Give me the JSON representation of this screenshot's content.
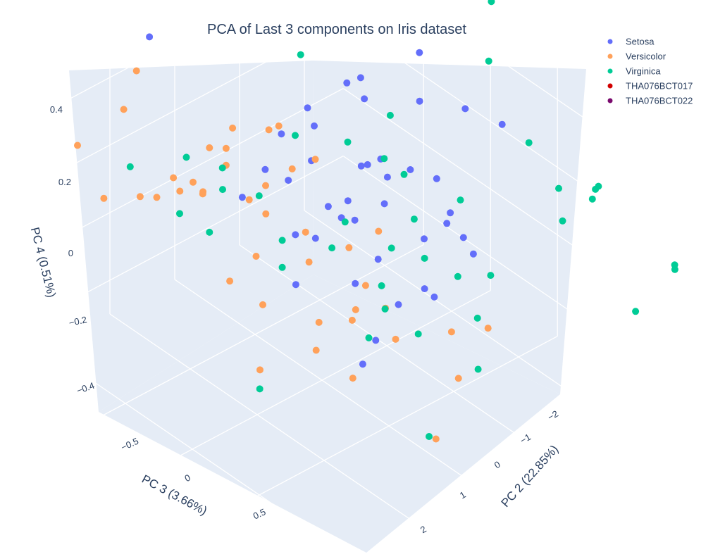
{
  "chart_data": {
    "type": "scatter",
    "projection": "3d",
    "title": "PCA of Last 3 components on Iris dataset",
    "xlabel": "PC 3 (3.66%)",
    "ylabel": "PC 2 (22.85%)",
    "zlabel": "PC 4 (0.51%)",
    "x_ticks": [
      "−0.5",
      "0",
      "0.5"
    ],
    "y_ticks": [
      "−2",
      "−1",
      "0",
      "1",
      "2"
    ],
    "z_ticks": [
      "0.4",
      "0.2",
      "0",
      "−0.2",
      "−0.4"
    ],
    "grid": true,
    "legend_position": "top-right",
    "colors": {
      "scene_background": "#E5ECF6",
      "gridline": "#ffffff",
      "text": "#2a3f5f"
    },
    "series": [
      {
        "name": "Setosa",
        "color": "#636EFA",
        "points": [
          [
            -0.95,
            0.7,
            0.33
          ],
          [
            -0.05,
            -0.7,
            0.31
          ],
          [
            0.05,
            -1.4,
            0.34
          ],
          [
            0.05,
            -0.55,
            0.29
          ],
          [
            -0.25,
            -0.9,
            0.22
          ],
          [
            0.1,
            -1.3,
            0.22
          ],
          [
            0.15,
            -1.9,
            0.15
          ],
          [
            0.45,
            -1.85,
            0.19
          ],
          [
            -0.35,
            -0.5,
            0.16
          ],
          [
            -0.4,
            -0.2,
            0.1
          ],
          [
            -0.3,
            -0.5,
            0.12
          ],
          [
            0.05,
            -0.6,
            0.09
          ],
          [
            0.1,
            -0.4,
            0.12
          ],
          [
            0.1,
            -0.7,
            0.11
          ],
          [
            -0.2,
            -0.25,
            0.07
          ],
          [
            0.2,
            -0.95,
            0.08
          ],
          [
            0.15,
            -0.7,
            0.07
          ],
          [
            0.3,
            -1.15,
            0.06
          ],
          [
            0.2,
            -0.55,
            0.02
          ],
          [
            -0.4,
            0.05,
            0.02
          ],
          [
            -0.3,
            -0.1,
            0.0
          ],
          [
            0.0,
            -0.4,
            -0.01
          ],
          [
            -0.05,
            -0.2,
            -0.02
          ],
          [
            0.1,
            -0.3,
            -0.03
          ],
          [
            0.45,
            -1.05,
            0.01
          ],
          [
            0.4,
            -1.1,
            -0.04
          ],
          [
            0.4,
            -0.75,
            -0.05
          ],
          [
            0.5,
            -1.15,
            -0.06
          ],
          [
            0.55,
            -1.2,
            -0.1
          ],
          [
            -0.45,
            0.3,
            -0.05
          ],
          [
            0.0,
            0.1,
            -0.07
          ],
          [
            -0.15,
            0.1,
            -0.1
          ],
          [
            0.25,
            -0.35,
            -0.11
          ],
          [
            0.5,
            -0.55,
            -0.15
          ],
          [
            0.5,
            -0.7,
            -0.19
          ],
          [
            0.45,
            -0.25,
            -0.18
          ],
          [
            0.2,
            -0.1,
            -0.17
          ],
          [
            -0.05,
            0.3,
            -0.2
          ],
          [
            0.45,
            0.3,
            -0.3
          ],
          [
            0.45,
            0.1,
            -0.25
          ],
          [
            0.0,
            -0.3,
            -0.05
          ]
        ]
      },
      {
        "name": "Versicolor",
        "color": "#FFA15A",
        "points": [
          [
            -0.95,
            0.9,
            0.25
          ],
          [
            -0.9,
            1.2,
            0.18
          ],
          [
            -1.1,
            1.5,
            0.05
          ],
          [
            -0.45,
            0.45,
            0.17
          ],
          [
            -0.3,
            0.2,
            0.18
          ],
          [
            -0.25,
            0.15,
            0.2
          ],
          [
            -0.55,
            0.6,
            0.1
          ],
          [
            -0.45,
            0.55,
            0.12
          ],
          [
            -0.65,
            0.95,
            0.02
          ],
          [
            -0.45,
            0.55,
            0.07
          ],
          [
            -0.15,
            0.15,
            0.1
          ],
          [
            -0.6,
            0.75,
            0.0
          ],
          [
            -0.65,
            0.85,
            -0.03
          ],
          [
            -0.75,
            1.0,
            -0.06
          ],
          [
            -0.85,
            1.05,
            -0.08
          ],
          [
            -0.35,
            0.4,
            -0.02
          ],
          [
            -0.25,
            0.35,
            -0.04
          ],
          [
            -0.3,
            0.25,
            0.02
          ],
          [
            -0.05,
            0.15,
            -0.06
          ],
          [
            0.35,
            -0.15,
            0.02
          ],
          [
            0.25,
            0.1,
            -0.03
          ],
          [
            -0.55,
            0.7,
            -0.02
          ],
          [
            -0.6,
            0.6,
            -0.05
          ],
          [
            -1.0,
            1.3,
            -0.1
          ],
          [
            -0.25,
            0.5,
            -0.15
          ],
          [
            0.0,
            0.2,
            -0.13
          ],
          [
            0.35,
            0.05,
            -0.12
          ],
          [
            0.45,
            -0.05,
            -0.17
          ],
          [
            0.3,
            0.1,
            -0.2
          ],
          [
            -0.35,
            0.7,
            -0.23
          ],
          [
            -0.2,
            0.5,
            -0.28
          ],
          [
            0.05,
            0.15,
            -0.3
          ],
          [
            0.25,
            0.05,
            -0.25
          ],
          [
            0.75,
            -0.45,
            -0.2
          ],
          [
            0.95,
            -0.6,
            -0.15
          ],
          [
            0.85,
            -0.35,
            -0.3
          ],
          [
            0.4,
            0.35,
            -0.35
          ],
          [
            -0.1,
            0.75,
            -0.42
          ],
          [
            0.15,
            0.4,
            -0.33
          ],
          [
            0.55,
            0.0,
            -0.23
          ],
          [
            0.9,
            0.1,
            -0.42
          ],
          [
            -0.05,
            0.0,
            0.14
          ]
        ]
      },
      {
        "name": "Virginica",
        "color": "#00CC96",
        "points": [
          [
            0.2,
            -2.2,
            0.45
          ],
          [
            0.35,
            -1.85,
            0.35
          ],
          [
            -0.45,
            -0.6,
            0.28
          ],
          [
            0.05,
            -0.95,
            0.2
          ],
          [
            0.65,
            -1.85,
            0.19
          ],
          [
            1.0,
            -2.2,
            0.12
          ],
          [
            1.05,
            -2.05,
            0.14
          ],
          [
            1.1,
            -1.9,
            0.14
          ],
          [
            0.8,
            -2.0,
            0.08
          ],
          [
            0.95,
            -1.75,
            0.05
          ],
          [
            -0.2,
            0.0,
            0.17
          ],
          [
            -0.05,
            -0.5,
            0.14
          ],
          [
            0.15,
            -0.65,
            0.13
          ],
          [
            0.25,
            -0.75,
            0.1
          ],
          [
            0.55,
            -1.0,
            0.08
          ],
          [
            -0.65,
            0.75,
            0.06
          ],
          [
            -0.55,
            0.4,
            0.02
          ],
          [
            0.35,
            -0.7,
            0.0
          ],
          [
            1.4,
            -2.55,
            -0.04
          ],
          [
            1.45,
            -2.45,
            -0.03
          ],
          [
            -0.9,
            1.1,
            0.0
          ],
          [
            -0.5,
            0.5,
            -0.02
          ],
          [
            -0.3,
            0.35,
            0.0
          ],
          [
            0.1,
            -0.15,
            -0.02
          ],
          [
            0.35,
            -0.35,
            -0.05
          ],
          [
            0.5,
            -0.55,
            -0.06
          ],
          [
            0.7,
            -0.65,
            -0.07
          ],
          [
            0.8,
            -0.95,
            -0.07
          ],
          [
            1.35,
            -2.05,
            -0.14
          ],
          [
            -0.7,
            0.75,
            -0.12
          ],
          [
            -0.2,
            0.2,
            -0.12
          ],
          [
            0.05,
            -0.05,
            -0.1
          ],
          [
            0.3,
            -0.3,
            -0.17
          ],
          [
            0.75,
            -0.85,
            -0.2
          ],
          [
            -0.55,
            0.6,
            -0.15
          ],
          [
            -0.2,
            0.2,
            -0.2
          ],
          [
            0.35,
            -0.25,
            -0.22
          ],
          [
            0.55,
            -0.35,
            -0.25
          ],
          [
            0.9,
            -0.55,
            -0.28
          ],
          [
            0.35,
            0.0,
            -0.28
          ],
          [
            0.8,
            0.0,
            -0.45
          ],
          [
            -0.15,
            0.65,
            -0.5
          ]
        ]
      },
      {
        "name": "THA076BCT017",
        "color": "#d10000",
        "points": []
      },
      {
        "name": "THA076BCT022",
        "color": "#7a0a6e",
        "points": []
      }
    ]
  }
}
